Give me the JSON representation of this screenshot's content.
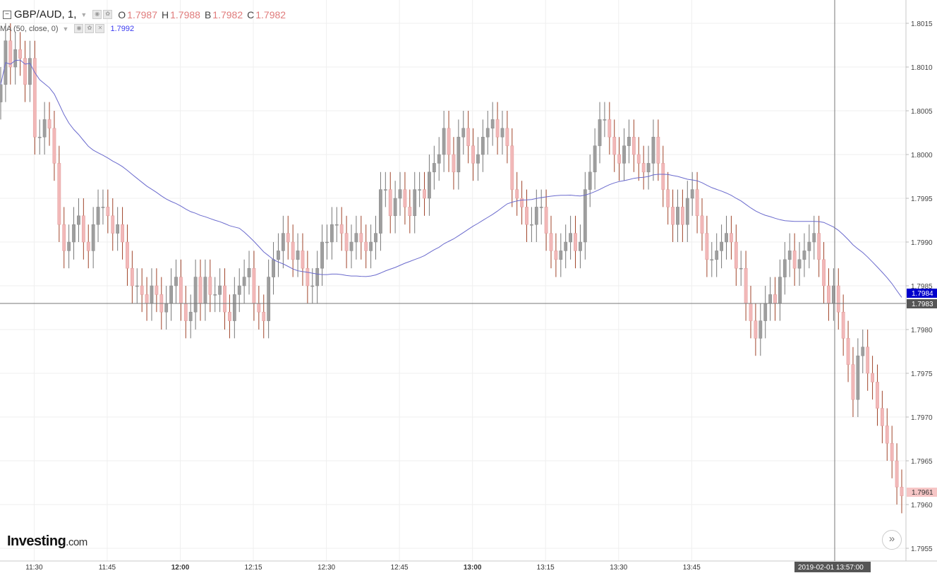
{
  "legend": {
    "symbol": "GBP/AUD, 1,",
    "open_label": "O",
    "open": "1.7987",
    "high_label": "H",
    "high": "1.7988",
    "bid_label": "B",
    "bid": "1.7982",
    "close_label": "C",
    "close": "1.7982",
    "ma_label": "MA (50, close, 0)",
    "ma_value": "1.7992"
  },
  "logo": {
    "main": "Investing",
    "suffix": ".com"
  },
  "crosshair": {
    "price": "1.7983",
    "time": "2019-02-01 13:57:00"
  },
  "markers": {
    "ma_last": "1.7984",
    "last_price": "1.7961"
  },
  "colors": {
    "up": "#9e9e9e",
    "down": "#f2b8b8",
    "down_wick": "#a0442a",
    "ma": "#6a6acd",
    "ma_label_bg": "#0000cc",
    "last_bg": "#f6c6c6"
  },
  "chart_data": {
    "type": "candlestick",
    "title": "GBP/AUD, 1",
    "interval": "1 minute",
    "x_tick_labels": [
      "11:30",
      "11:45",
      "12:00",
      "12:15",
      "12:30",
      "12:45",
      "13:00",
      "13:15",
      "13:30",
      "13:45"
    ],
    "y_tick_labels": [
      "1.8015",
      "1.8010",
      "1.8005",
      "1.8000",
      "1.7995",
      "1.7990",
      "1.7985",
      "1.7980",
      "1.7975",
      "1.7970",
      "1.7965",
      "1.7960",
      "1.7955"
    ],
    "ylim": [
      1.7954,
      1.8018
    ],
    "grid": true,
    "x_start": "11:24",
    "close_series": [
      1.8008,
      1.8013,
      1.801,
      1.8012,
      1.8011,
      1.8008,
      1.8011,
      1.8002,
      1.8002,
      1.8004,
      1.8003,
      1.7999,
      1.7992,
      1.7989,
      1.799,
      1.7992,
      1.7993,
      1.799,
      1.7989,
      1.7992,
      1.7994,
      1.7994,
      1.7993,
      1.7991,
      1.7992,
      1.799,
      1.7987,
      1.7985,
      1.7985,
      1.7984,
      1.7983,
      1.7985,
      1.7984,
      1.7982,
      1.7983,
      1.7985,
      1.7986,
      1.7983,
      1.7981,
      1.7982,
      1.7986,
      1.7983,
      1.7986,
      1.7984,
      1.7984,
      1.7985,
      1.7982,
      1.7981,
      1.7984,
      1.7985,
      1.7986,
      1.7987,
      1.7983,
      1.7982,
      1.7981,
      1.7986,
      1.7988,
      1.7989,
      1.7991,
      1.799,
      1.7988,
      1.7989,
      1.7987,
      1.7985,
      1.7985,
      1.7987,
      1.799,
      1.799,
      1.7992,
      1.7992,
      1.7991,
      1.7989,
      1.799,
      1.7991,
      1.799,
      1.7989,
      1.799,
      1.7991,
      1.7996,
      1.7996,
      1.7993,
      1.7995,
      1.7996,
      1.7994,
      1.7993,
      1.7996,
      1.7996,
      1.7995,
      1.7998,
      1.7999,
      1.8,
      1.8003,
      1.8,
      1.7998,
      1.8002,
      1.8003,
      1.8001,
      1.7999,
      1.8,
      1.8002,
      1.8003,
      1.8004,
      1.8002,
      1.8003,
      1.8001,
      1.7996,
      1.7995,
      1.7994,
      1.7992,
      1.7992,
      1.7994,
      1.7994,
      1.7991,
      1.7989,
      1.7988,
      1.7989,
      1.799,
      1.7991,
      1.7989,
      1.799,
      1.7996,
      1.7998,
      1.8001,
      1.8004,
      1.8004,
      1.8002,
      1.8,
      1.7999,
      1.8001,
      1.8002,
      1.8,
      1.7999,
      1.7998,
      1.7999,
      1.8002,
      1.7999,
      1.7996,
      1.7994,
      1.7992,
      1.7994,
      1.7992,
      1.7995,
      1.7996,
      1.7993,
      1.7991,
      1.7988,
      1.7988,
      1.7989,
      1.799,
      1.7991,
      1.799,
      1.7987,
      1.7987,
      1.7983,
      1.7981,
      1.7979,
      1.7981,
      1.7983,
      1.7984,
      1.7983,
      1.7986,
      1.7988,
      1.7989,
      1.7987,
      1.7988,
      1.7989,
      1.799,
      1.7991,
      1.7988,
      1.7985,
      1.7983,
      1.7985,
      1.7982,
      1.7979,
      1.7976,
      1.7972,
      1.7977,
      1.7978,
      1.7975,
      1.7974,
      1.7971,
      1.7969,
      1.7967,
      1.7965,
      1.7962,
      1.7961
    ]
  }
}
